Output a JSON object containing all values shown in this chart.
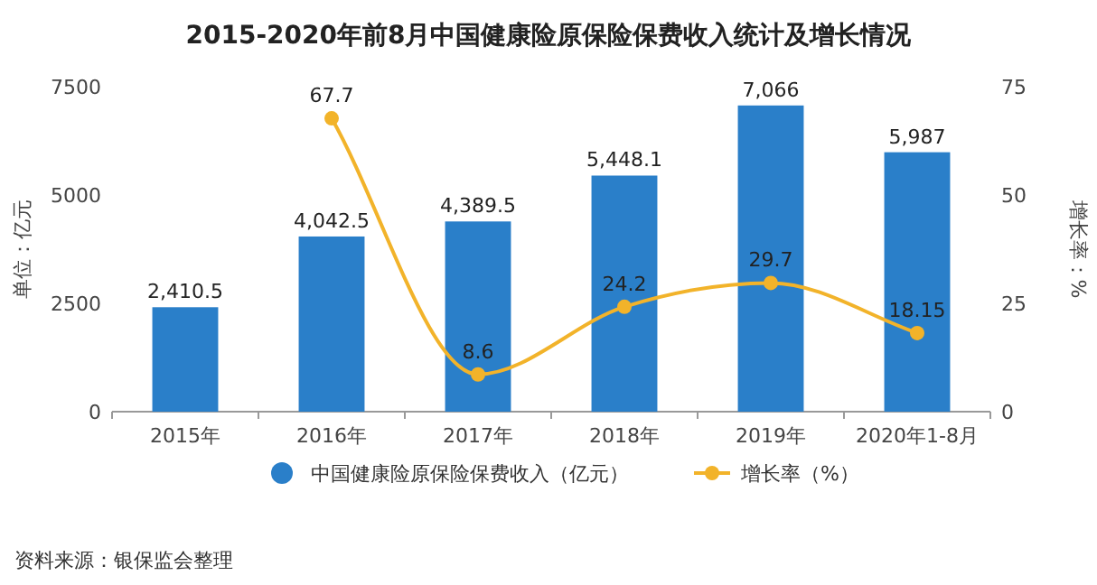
{
  "chart_data": {
    "type": "bar",
    "title": "2015-2020年前8月中国健康险原保险保费收入统计及增长情况",
    "categories": [
      "2015年",
      "2016年",
      "2017年",
      "2018年",
      "2019年",
      "2020年1-8月"
    ],
    "series": [
      {
        "name": "中国健康险原保险保费收入（亿元）",
        "color": "#2a7fc9",
        "values": [
          2410.5,
          4042.5,
          4389.5,
          5448.1,
          7066,
          5987
        ],
        "value_labels": [
          "2,410.5",
          "4,042.5",
          "4,389.5",
          "5,448.1",
          "7,066",
          "5,987"
        ]
      },
      {
        "name": "增长率（%）",
        "type": "line",
        "axis": "y2",
        "color": "#f2b32a",
        "marker": "circle",
        "values": [
          null,
          67.7,
          8.6,
          24.2,
          29.7,
          18.15
        ],
        "value_labels": [
          null,
          "67.7",
          "8.6",
          "24.2",
          "29.7",
          "18.15"
        ]
      }
    ],
    "ylabel": "单位：亿元",
    "y2label": "增长率：%",
    "ylim": [
      0,
      7500
    ],
    "yticks": [
      0,
      2500,
      5000,
      7500
    ],
    "y2lim": [
      0,
      75
    ],
    "y2ticks": [
      0,
      25,
      50,
      75
    ],
    "legend": "bottom",
    "grid": false,
    "annotations": [
      "资料来源：银保监会整理"
    ]
  }
}
